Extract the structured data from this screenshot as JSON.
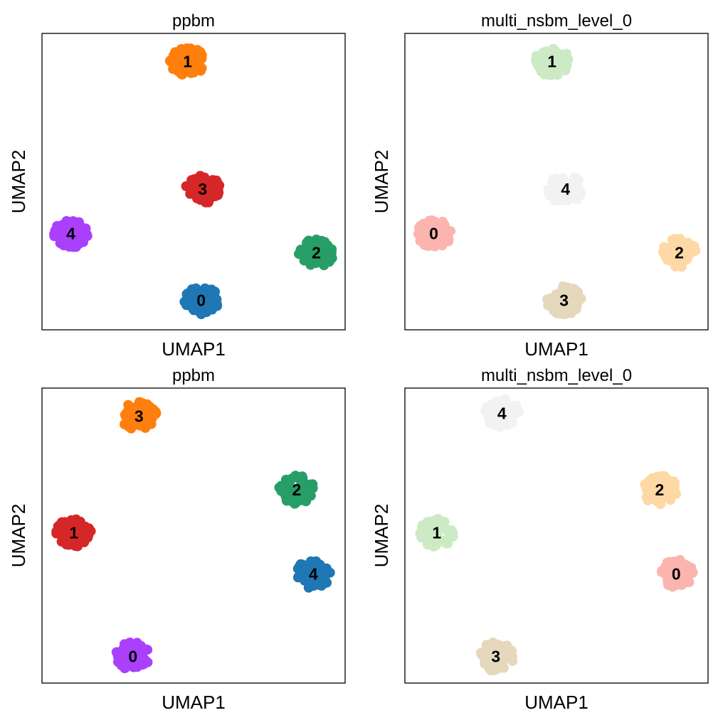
{
  "chart_data": [
    {
      "type": "scatter",
      "title": "ppbm",
      "xlabel": "UMAP1",
      "ylabel": "UMAP2",
      "xlim": [
        0,
        1
      ],
      "ylim": [
        0,
        1
      ],
      "grid": false,
      "legend": "on data",
      "clusters": [
        {
          "label": "1",
          "x": 0.48,
          "y": 0.905,
          "color": "#ff7f0e"
        },
        {
          "label": "3",
          "x": 0.53,
          "y": 0.475,
          "color": "#d62728"
        },
        {
          "label": "4",
          "x": 0.095,
          "y": 0.325,
          "color": "#aa40fc"
        },
        {
          "label": "2",
          "x": 0.905,
          "y": 0.26,
          "color": "#279e68"
        },
        {
          "label": "0",
          "x": 0.525,
          "y": 0.1,
          "color": "#1f77b4"
        }
      ]
    },
    {
      "type": "scatter",
      "title": "multi_nsbm_level_0",
      "xlabel": "UMAP1",
      "ylabel": "UMAP2",
      "xlim": [
        0,
        1
      ],
      "ylim": [
        0,
        1
      ],
      "grid": false,
      "legend": "on data",
      "clusters": [
        {
          "label": "1",
          "x": 0.485,
          "y": 0.905,
          "color": "#ccebc5"
        },
        {
          "label": "4",
          "x": 0.53,
          "y": 0.475,
          "color": "#f2f2f2"
        },
        {
          "label": "0",
          "x": 0.095,
          "y": 0.325,
          "color": "#fbb4ae"
        },
        {
          "label": "2",
          "x": 0.905,
          "y": 0.26,
          "color": "#fed9a6"
        },
        {
          "label": "3",
          "x": 0.525,
          "y": 0.1,
          "color": "#e5d8bd"
        }
      ]
    },
    {
      "type": "scatter",
      "title": "ppbm",
      "xlabel": "UMAP1",
      "ylabel": "UMAP2",
      "xlim": [
        0,
        1
      ],
      "ylim": [
        0,
        1
      ],
      "grid": false,
      "legend": "on data",
      "clusters": [
        {
          "label": "3",
          "x": 0.32,
          "y": 0.905,
          "color": "#ff7f0e"
        },
        {
          "label": "2",
          "x": 0.84,
          "y": 0.655,
          "color": "#279e68"
        },
        {
          "label": "1",
          "x": 0.105,
          "y": 0.51,
          "color": "#d62728"
        },
        {
          "label": "4",
          "x": 0.895,
          "y": 0.37,
          "color": "#1f77b4"
        },
        {
          "label": "0",
          "x": 0.3,
          "y": 0.09,
          "color": "#aa40fc"
        }
      ]
    },
    {
      "type": "scatter",
      "title": "multi_nsbm_level_0",
      "xlabel": "UMAP1",
      "ylabel": "UMAP2",
      "xlim": [
        0,
        1
      ],
      "ylim": [
        0,
        1
      ],
      "grid": false,
      "legend": "on data",
      "clusters": [
        {
          "label": "4",
          "x": 0.32,
          "y": 0.915,
          "color": "#f2f2f2"
        },
        {
          "label": "2",
          "x": 0.84,
          "y": 0.655,
          "color": "#fed9a6"
        },
        {
          "label": "1",
          "x": 0.105,
          "y": 0.51,
          "color": "#ccebc5"
        },
        {
          "label": "0",
          "x": 0.895,
          "y": 0.37,
          "color": "#fbb4ae"
        },
        {
          "label": "3",
          "x": 0.3,
          "y": 0.09,
          "color": "#e5d8bd"
        }
      ]
    }
  ]
}
